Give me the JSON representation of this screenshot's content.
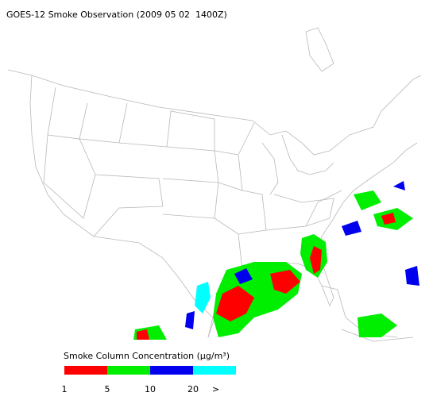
{
  "title": "GOES-12 Smoke Observation (2009 05 02  1400Z)",
  "legend": {
    "title": "Smoke Column Concentration (μg/m³)",
    "colors": [
      "#ff0000",
      "#00ee00",
      "#0000ee",
      "#00ffff"
    ],
    "labels": [
      "1",
      "5",
      "10",
      "20",
      ">"
    ]
  }
}
